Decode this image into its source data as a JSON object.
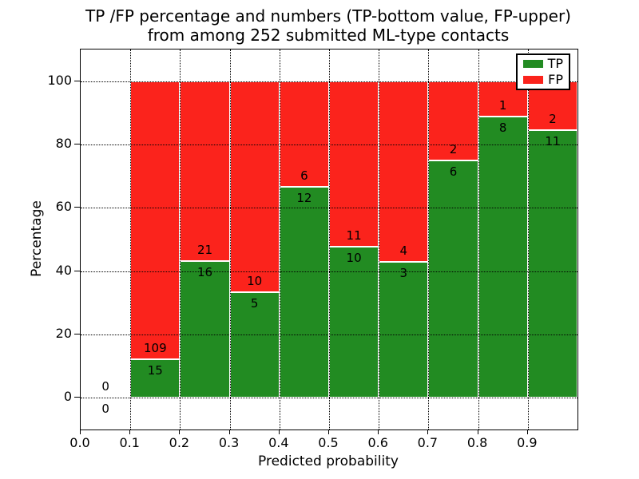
{
  "chart_data": {
    "type": "bar",
    "subtype": "stacked-percentage-histogram",
    "title_line1": "TP /FP percentage and numbers (TP-bottom value, FP-upper)",
    "title_line2": "from among 252 submitted ML-type contacts",
    "xlabel": "Predicted probability",
    "ylabel": "Percentage",
    "total_contacts": 252,
    "xlim": [
      0.0,
      1.0
    ],
    "ylim": [
      -10,
      110
    ],
    "xticks": [
      "0.0",
      "0.1",
      "0.2",
      "0.3",
      "0.4",
      "0.5",
      "0.6",
      "0.7",
      "0.8",
      "0.9"
    ],
    "yticks": [
      "0",
      "20",
      "40",
      "60",
      "80",
      "100"
    ],
    "grid": "dotted",
    "colors": {
      "tp": "#228b22",
      "fp": "#fb231c",
      "bar_edge": "#ffffff",
      "grid": "#000000"
    },
    "legend": {
      "position": "upper-right",
      "entries": [
        {
          "label": "TP",
          "color": "#228b22"
        },
        {
          "label": "FP",
          "color": "#fb231c"
        }
      ]
    },
    "bins": [
      {
        "x0": 0.0,
        "x1": 0.1,
        "tp": 0,
        "fp": 0,
        "tp_pct": null
      },
      {
        "x0": 0.1,
        "x1": 0.2,
        "tp": 15,
        "fp": 109,
        "tp_pct": 12.1
      },
      {
        "x0": 0.2,
        "x1": 0.3,
        "tp": 16,
        "fp": 21,
        "tp_pct": 43.24
      },
      {
        "x0": 0.3,
        "x1": 0.4,
        "tp": 5,
        "fp": 10,
        "tp_pct": 33.33
      },
      {
        "x0": 0.4,
        "x1": 0.5,
        "tp": 12,
        "fp": 6,
        "tp_pct": 66.67
      },
      {
        "x0": 0.5,
        "x1": 0.6,
        "tp": 10,
        "fp": 11,
        "tp_pct": 47.62
      },
      {
        "x0": 0.6,
        "x1": 0.7,
        "tp": 3,
        "fp": 4,
        "tp_pct": 42.86
      },
      {
        "x0": 0.7,
        "x1": 0.8,
        "tp": 6,
        "fp": 2,
        "tp_pct": 75.0
      },
      {
        "x0": 0.8,
        "x1": 0.9,
        "tp": 8,
        "fp": 1,
        "tp_pct": 88.89
      },
      {
        "x0": 0.9,
        "x1": 1.0,
        "tp": 11,
        "fp": 2,
        "tp_pct": 84.62
      }
    ]
  }
}
